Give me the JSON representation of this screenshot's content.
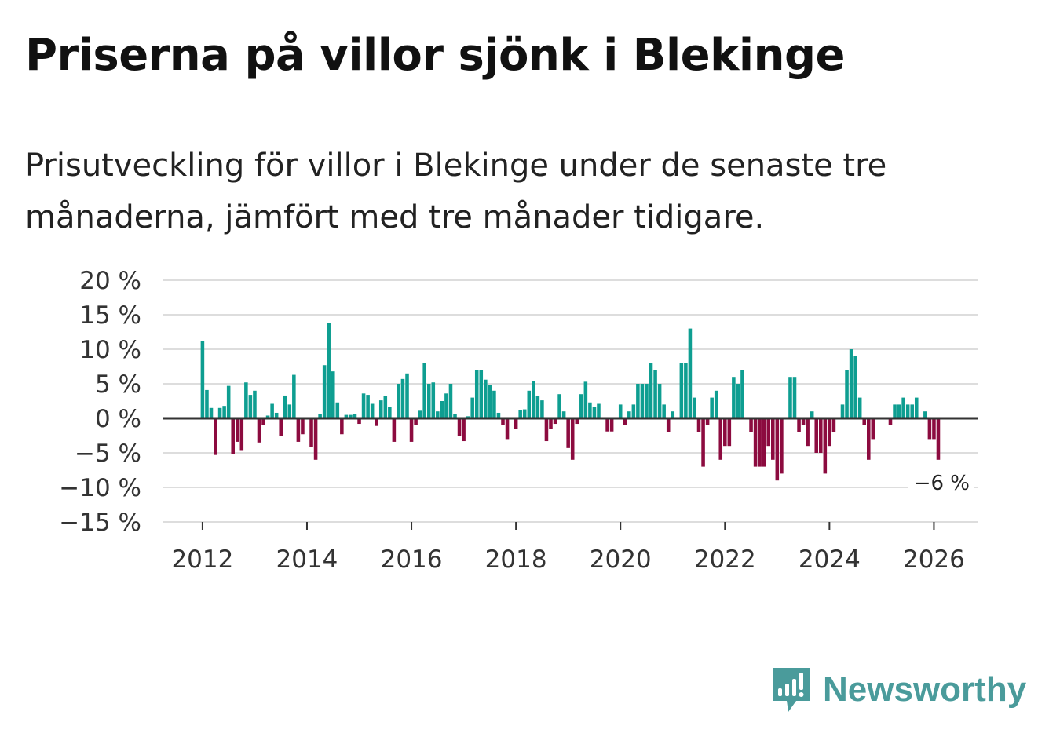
{
  "header": {
    "title": "Priserna på villor sjönk i Blekinge",
    "subtitle": "Prisutveckling för villor i Blekinge under de senaste tre månaderna, jämfört med tre månader tidigare."
  },
  "brand": {
    "name": "Newsworthy",
    "icon": "newsworthy-logo-icon",
    "color": "#4a9b9b"
  },
  "chart_data": {
    "type": "bar",
    "title": "Priserna på villor sjönk i Blekinge",
    "subtitle": "Prisutveckling för villor i Blekinge under de senaste tre månaderna, jämfört med tre månader tidigare.",
    "xlabel": "",
    "ylabel": "",
    "ylim": [
      -15,
      20
    ],
    "xlim": [
      2011.25,
      2026.85
    ],
    "y_ticks": [
      20,
      15,
      10,
      5,
      0,
      -5,
      -10,
      -15
    ],
    "y_tick_labels": [
      "20 %",
      "15 %",
      "10 %",
      "5 %",
      "0 %",
      "−5 %",
      "−10 %",
      "−15 %"
    ],
    "x_ticks": [
      2012,
      2014,
      2016,
      2018,
      2020,
      2022,
      2024,
      2026
    ],
    "x_tick_labels": [
      "2012",
      "2014",
      "2016",
      "2018",
      "2020",
      "2022",
      "2024",
      "2026"
    ],
    "grid": true,
    "legend": "none",
    "colors": {
      "positive": "#0e9e91",
      "negative": "#8c0b3f",
      "zero_line": "#333333",
      "grid": "#dddddd"
    },
    "start": "2012-01",
    "frequency": "monthly",
    "last_value_label": "−6 %",
    "series": [
      {
        "name": "Prisutveckling",
        "values": [
          11.2,
          4.1,
          1.5,
          -5.3,
          1.5,
          1.8,
          4.7,
          -5.2,
          -3.4,
          -4.6,
          5.2,
          3.4,
          4.0,
          -3.5,
          -1.0,
          0.4,
          2.1,
          0.8,
          -2.5,
          3.3,
          2.0,
          6.3,
          -3.4,
          -2.3,
          0.0,
          -4.1,
          -6.0,
          0.6,
          7.7,
          13.8,
          6.8,
          2.3,
          -2.3,
          0.5,
          0.5,
          0.6,
          -0.8,
          3.6,
          3.4,
          2.1,
          -1.1,
          2.6,
          3.2,
          1.6,
          -3.4,
          5.0,
          5.7,
          6.5,
          -3.4,
          -1.0,
          1.1,
          8.0,
          5.0,
          5.2,
          1.0,
          2.5,
          3.6,
          5.0,
          0.6,
          -2.5,
          -3.3,
          0.3,
          3.0,
          7.0,
          7.0,
          5.6,
          4.8,
          4.0,
          0.8,
          -1.0,
          -3.0,
          0.0,
          -1.5,
          1.2,
          1.3,
          4.0,
          5.4,
          3.2,
          2.6,
          -3.3,
          -1.5,
          -0.8,
          3.5,
          1.0,
          -4.3,
          -6.0,
          -0.8,
          3.5,
          5.3,
          2.3,
          1.6,
          2.1,
          0.0,
          -1.9,
          -1.9,
          0.0,
          2.0,
          -1.0,
          1.0,
          2.0,
          5.0,
          5.0,
          5.0,
          8.0,
          7.0,
          5.0,
          2.0,
          -2.0,
          1.0,
          0.0,
          8.0,
          8.0,
          13.0,
          3.0,
          -2.0,
          -7.0,
          -1.0,
          3.0,
          4.0,
          -6.0,
          -4.0,
          -4.0,
          6.0,
          5.0,
          7.0,
          0.0,
          -2.0,
          -7.0,
          -7.0,
          -7.0,
          -4.0,
          -6.0,
          -9.0,
          -8.0,
          0.0,
          6.0,
          6.0,
          -2.0,
          -1.0,
          -4.0,
          1.0,
          -5.0,
          -5.0,
          -8.0,
          -4.0,
          -2.0,
          0.0,
          2.0,
          7.0,
          10.0,
          9.0,
          3.0,
          -1.0,
          -6.0,
          -3.0,
          0.0,
          0.0,
          0.0,
          -1.0,
          2.0,
          2.0,
          3.0,
          2.0,
          2.0,
          3.0,
          0.0,
          1.0,
          -3.0,
          -3.0,
          -6.0
        ]
      }
    ]
  }
}
